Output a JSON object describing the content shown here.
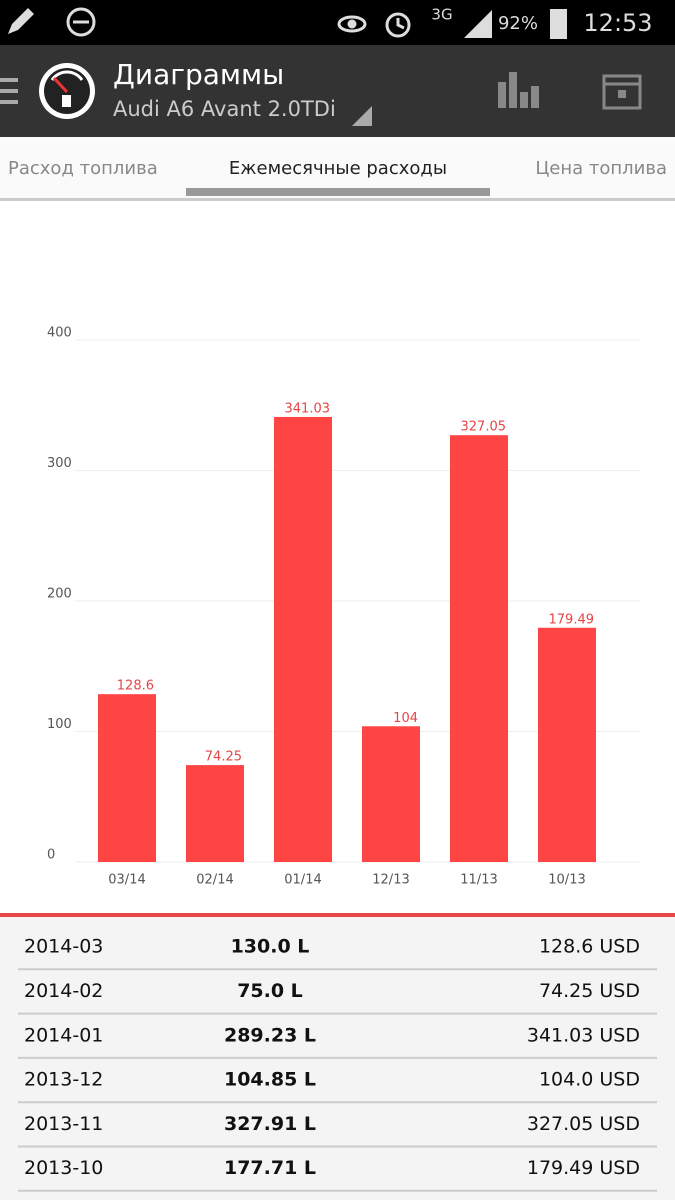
{
  "status_bar": {
    "network": "3G",
    "battery": "92%",
    "time": "12:53"
  },
  "app_bar": {
    "title": "Диаграммы",
    "subtitle": "Audi A6 Avant 2.0TDi"
  },
  "tabs": [
    "Расход топлива",
    "Ежемесячные расходы",
    "Цена топлива"
  ],
  "chart_data": {
    "type": "bar",
    "categories": [
      "03/14",
      "02/14",
      "01/14",
      "12/13",
      "11/13",
      "10/13"
    ],
    "values": [
      128.6,
      74.25,
      341.03,
      104,
      327.05,
      179.49
    ],
    "color": "#ff4444",
    "ylim": [
      0,
      400
    ],
    "yticks": [
      0,
      100,
      200,
      300,
      400
    ],
    "grid": true
  },
  "table": {
    "rows": [
      [
        "2014-03",
        "130.0 L",
        "128.6 USD"
      ],
      [
        "2014-02",
        "75.0 L",
        "74.25 USD"
      ],
      [
        "2014-01",
        "289.23 L",
        "341.03 USD"
      ],
      [
        "2013-12",
        "104.85 L",
        "104.0 USD"
      ],
      [
        "2013-11",
        "327.91 L",
        "327.05 USD"
      ],
      [
        "2013-10",
        "177.71 L",
        "179.49 USD"
      ]
    ]
  }
}
